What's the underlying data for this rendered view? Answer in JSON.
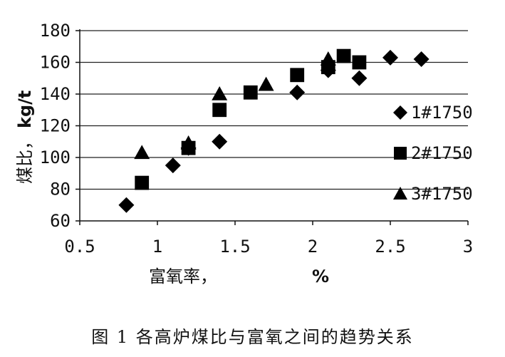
{
  "caption": "图 1   各高炉煤比与富氧之间的趋势关系",
  "chart_data": {
    "type": "scatter",
    "title": "",
    "xlabel": "富氧率，",
    "xlabel_unit": "%",
    "ylabel": "煤比，",
    "ylabel_unit": "kg/t",
    "xlim": [
      0.5,
      3
    ],
    "ylim": [
      60,
      180
    ],
    "x_ticks": [
      "0.5",
      "1",
      "1.5",
      "2",
      "2.5",
      "3"
    ],
    "y_ticks": [
      "60",
      "80",
      "100",
      "120",
      "140",
      "160",
      "180"
    ],
    "grid": "horizontal",
    "legend_position": "right",
    "series": [
      {
        "name": "1#1750",
        "marker": "diamond",
        "color": "#000000",
        "points": [
          [
            0.8,
            70
          ],
          [
            1.1,
            95
          ],
          [
            1.2,
            106
          ],
          [
            1.4,
            110
          ],
          [
            1.9,
            141
          ],
          [
            2.1,
            155
          ],
          [
            2.3,
            150
          ],
          [
            2.5,
            163
          ],
          [
            2.7,
            162
          ]
        ]
      },
      {
        "name": "2#1750",
        "marker": "square",
        "color": "#000000",
        "points": [
          [
            0.9,
            84
          ],
          [
            1.2,
            106
          ],
          [
            1.4,
            130
          ],
          [
            1.6,
            141
          ],
          [
            1.9,
            152
          ],
          [
            2.1,
            157
          ],
          [
            2.2,
            164
          ],
          [
            2.3,
            160
          ]
        ]
      },
      {
        "name": "3#1750",
        "marker": "triangle",
        "color": "#000000",
        "points": [
          [
            0.9,
            103
          ],
          [
            1.2,
            109
          ],
          [
            1.4,
            140
          ],
          [
            1.7,
            146
          ],
          [
            2.1,
            162
          ]
        ]
      }
    ]
  }
}
